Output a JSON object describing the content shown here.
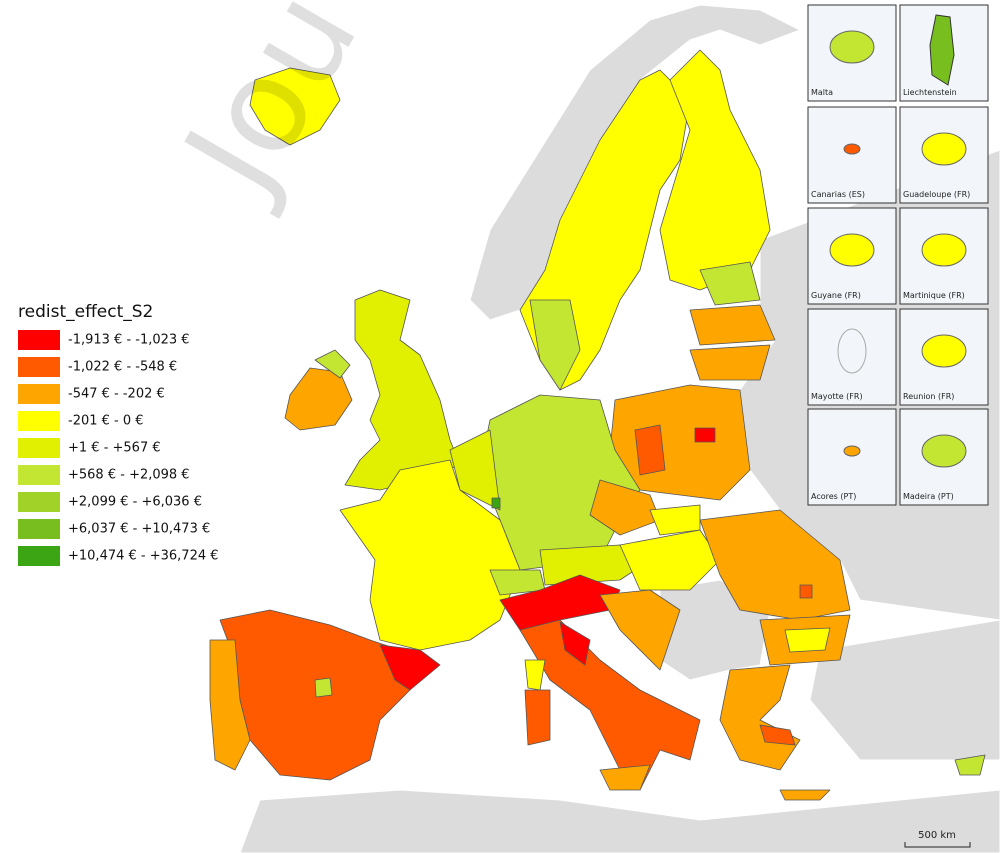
{
  "map": {
    "watermark": "Jou",
    "legend": {
      "title": "redist_effect_S2",
      "items": [
        {
          "label": "-1,913 € - -1,023 €",
          "color": "#ff0000"
        },
        {
          "label": "-1,022 € - -548 €",
          "color": "#ff5a00"
        },
        {
          "label": "-547 € - -202 €",
          "color": "#ffa500"
        },
        {
          "label": "-201 € - 0 €",
          "color": "#ffff00"
        },
        {
          "label": "+1 € - +567 €",
          "color": "#e1f000"
        },
        {
          "label": "+568 € - +2,098 €",
          "color": "#c3e632"
        },
        {
          "label": "+2,099 € - +6,036 €",
          "color": "#a0d228"
        },
        {
          "label": "+6,037 € - +10,473 €",
          "color": "#78be1e"
        },
        {
          "label": "+10,474 € - +36,724 €",
          "color": "#3ca514"
        }
      ]
    },
    "insets": [
      "Malta",
      "Liechtenstein",
      "Canarias (ES)",
      "Guadeloupe (FR)",
      "Guyane (FR)",
      "Martinique (FR)",
      "Mayotte (FR)",
      "Reunion (FR)",
      "Acores (PT)",
      "Madeira (PT)"
    ],
    "scale_bar": "500 km"
  }
}
